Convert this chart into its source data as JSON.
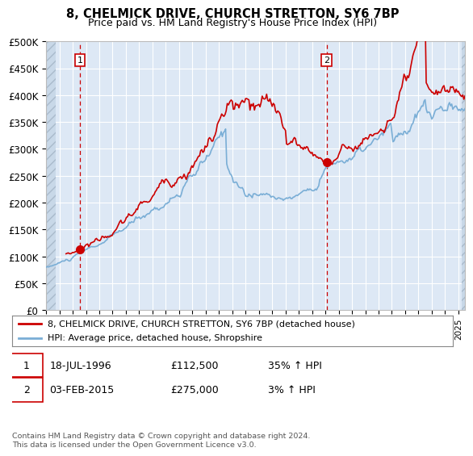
{
  "title": "8, CHELMICK DRIVE, CHURCH STRETTON, SY6 7BP",
  "subtitle": "Price paid vs. HM Land Registry's House Price Index (HPI)",
  "ylabel_ticks": [
    0,
    50000,
    100000,
    150000,
    200000,
    250000,
    300000,
    350000,
    400000,
    450000,
    500000
  ],
  "ylabel_labels": [
    "£0",
    "£50K",
    "£100K",
    "£150K",
    "£200K",
    "£250K",
    "£300K",
    "£350K",
    "£400K",
    "£450K",
    "£500K"
  ],
  "ylim": [
    0,
    500000
  ],
  "xlim_start": 1994.0,
  "xlim_end": 2025.5,
  "line_color_property": "#cc0000",
  "line_color_hpi": "#7aaed6",
  "sale1_x": 1996.54,
  "sale1_y": 112500,
  "sale2_x": 2015.09,
  "sale2_y": 275000,
  "marker_box_color": "#cc0000",
  "dashed_line_color": "#cc0000",
  "bg_fill_color": "#dde8f5",
  "legend_line1": "8, CHELMICK DRIVE, CHURCH STRETTON, SY6 7BP (detached house)",
  "legend_line2": "HPI: Average price, detached house, Shropshire",
  "annotation1_date": "18-JUL-1996",
  "annotation1_price": "£112,500",
  "annotation1_hpi": "35% ↑ HPI",
  "annotation2_date": "03-FEB-2015",
  "annotation2_price": "£275,000",
  "annotation2_hpi": "3% ↑ HPI",
  "footer": "Contains HM Land Registry data © Crown copyright and database right 2024.\nThis data is licensed under the Open Government Licence v3.0."
}
